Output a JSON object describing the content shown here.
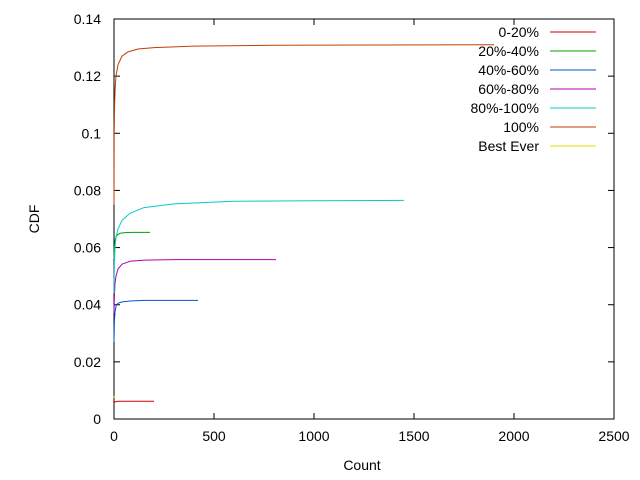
{
  "chart_data": {
    "type": "line",
    "title": "",
    "xlabel": "Count",
    "ylabel": "CDF",
    "xlim": [
      0,
      2500
    ],
    "ylim": [
      0,
      0.14
    ],
    "grid": false,
    "legend_position": "top-right",
    "x_ticks": [
      "0",
      "500",
      "1000",
      "1500",
      "2000",
      "2500"
    ],
    "y_ticks": [
      "0",
      "0.02",
      "0.04",
      "0.06",
      "0.08",
      "0.1",
      "0.12",
      "0.14"
    ],
    "series": [
      {
        "name": "0-20%",
        "color": "#cc0000",
        "x": [
          0,
          2,
          5,
          10,
          20,
          40,
          80,
          200
        ],
        "y": [
          0.0052,
          0.0058,
          0.006,
          0.0061,
          0.0062,
          0.0062,
          0.0062,
          0.0062
        ]
      },
      {
        "name": "20%-40%",
        "color": "#00a000",
        "x": [
          0,
          2,
          5,
          10,
          20,
          30,
          50,
          80,
          180
        ],
        "y": [
          0.056,
          0.06,
          0.0625,
          0.0638,
          0.0646,
          0.065,
          0.0652,
          0.0653,
          0.0653
        ]
      },
      {
        "name": "40%-60%",
        "color": "#0055cc",
        "x": [
          0,
          2,
          5,
          10,
          20,
          40,
          80,
          150,
          420
        ],
        "y": [
          0.027,
          0.034,
          0.0375,
          0.0395,
          0.0405,
          0.041,
          0.0413,
          0.0415,
          0.0415
        ]
      },
      {
        "name": "60%-80%",
        "color": "#b000b0",
        "x": [
          0,
          2,
          5,
          10,
          20,
          40,
          80,
          150,
          300,
          810
        ],
        "y": [
          0.037,
          0.043,
          0.0475,
          0.05,
          0.0525,
          0.0542,
          0.0552,
          0.0556,
          0.0558,
          0.0558
        ]
      },
      {
        "name": "80%-100%",
        "color": "#00cccc",
        "x": [
          0,
          2,
          5,
          10,
          20,
          40,
          80,
          150,
          300,
          600,
          1000,
          1450
        ],
        "y": [
          0.044,
          0.055,
          0.06,
          0.0635,
          0.0665,
          0.0695,
          0.072,
          0.074,
          0.0753,
          0.0762,
          0.0764,
          0.0765
        ]
      },
      {
        "name": "100%",
        "color": "#c04000",
        "x": [
          0,
          1,
          3,
          6,
          10,
          20,
          40,
          70,
          120,
          200,
          400,
          800,
          1300,
          1900
        ],
        "y": [
          0.075,
          0.1,
          0.11,
          0.116,
          0.12,
          0.124,
          0.127,
          0.1285,
          0.1295,
          0.13,
          0.1305,
          0.1308,
          0.1309,
          0.131
        ]
      },
      {
        "name": "Best Ever",
        "color": "#e0e000",
        "x": [
          0,
          1,
          3,
          5
        ],
        "y": [
          0.0075,
          0.0079,
          0.008,
          0.008
        ]
      }
    ]
  }
}
